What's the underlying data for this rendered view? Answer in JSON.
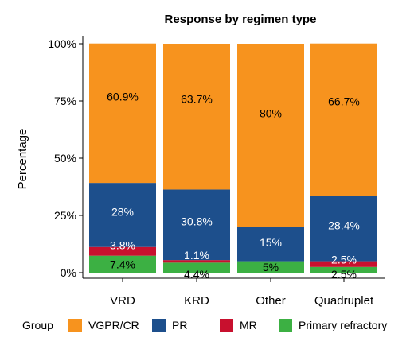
{
  "chart_data": {
    "type": "bar",
    "stacked": true,
    "title": "Response by regimen type",
    "xlabel": "",
    "ylabel": "Percentage",
    "ylim": [
      0,
      100
    ],
    "yticks": [
      "0%",
      "25%",
      "50%",
      "75%",
      "100%"
    ],
    "categories": [
      "VRD",
      "KRD",
      "Other",
      "Quadruplet"
    ],
    "legend_title": "Group",
    "legend_position": "bottom",
    "grid": false,
    "series": [
      {
        "name": "Primary refractory",
        "color": "#3cb043",
        "values": [
          7.4,
          4.4,
          5,
          2.5
        ],
        "labels": [
          "7.4%",
          "4.4%",
          "5%",
          "2.5%"
        ]
      },
      {
        "name": "MR",
        "color": "#c8102e",
        "values": [
          3.8,
          1.1,
          0,
          2.5
        ],
        "labels": [
          "3.8%",
          "1.1%",
          "",
          "2.5%"
        ]
      },
      {
        "name": "PR",
        "color": "#1d4f8c",
        "values": [
          28,
          30.8,
          15,
          28.4
        ],
        "labels": [
          "28%",
          "30.8%",
          "15%",
          "28.4%"
        ]
      },
      {
        "name": "VGPR/CR",
        "color": "#f7931e",
        "values": [
          60.9,
          63.7,
          80,
          66.7
        ],
        "labels": [
          "60.9%",
          "63.7%",
          "80%",
          "66.7%"
        ]
      }
    ],
    "legend_order": [
      "VGPR/CR",
      "PR",
      "MR",
      "Primary refractory"
    ]
  }
}
